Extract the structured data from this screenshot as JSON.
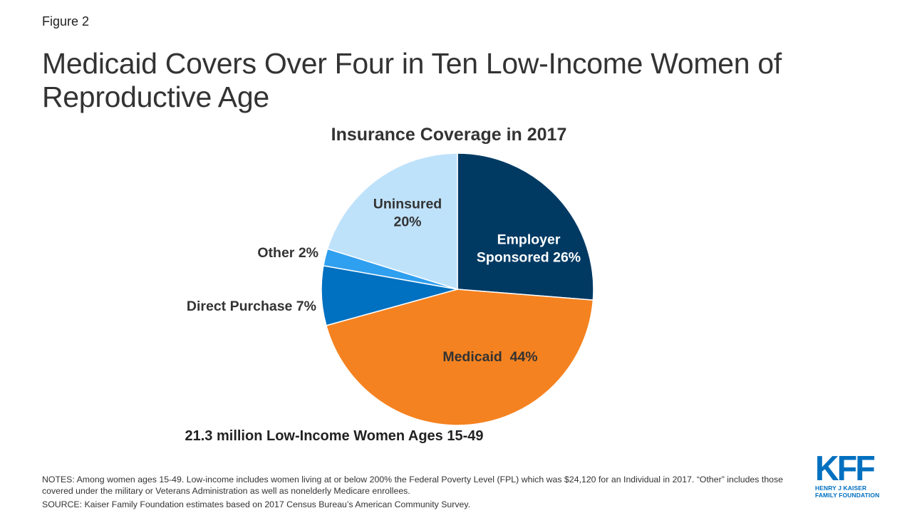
{
  "figure_label": "Figure 2",
  "title": "Medicaid Covers Over Four in Ten Low-Income Women of Reproductive Age",
  "chart_data": {
    "type": "pie",
    "title": "Insurance Coverage in 2017",
    "slices": [
      {
        "name": "Employer Sponsored",
        "value": 26,
        "label_lines": [
          "Employer",
          "Sponsored 26%"
        ],
        "color": "#003a63",
        "label_color": "#ffffff"
      },
      {
        "name": "Medicaid",
        "value": 44,
        "label_lines": [
          "Medicaid  44%"
        ],
        "color": "#f58220",
        "label_color": "#333333"
      },
      {
        "name": "Direct Purchase",
        "value": 7,
        "label_lines": [
          "Direct Purchase 7%"
        ],
        "color": "#0070c0",
        "label_color": "#333333"
      },
      {
        "name": "Other",
        "value": 2,
        "label_lines": [
          "Other 2%"
        ],
        "color": "#2f9ff0",
        "label_color": "#333333"
      },
      {
        "name": "Uninsured",
        "value": 20,
        "label_lines": [
          "Uninsured",
          "20%"
        ],
        "color": "#bfe2fb",
        "label_color": "#333333"
      }
    ],
    "footnote": "21.3 million  Low-Income  Women Ages 15-49"
  },
  "notes": "NOTES: Among women ages 15-49. Low-income includes women living at or below 200% the Federal Poverty Level (FPL) which was $24,120 for an Individual  in 2017. “Other” includes those covered  under the military or Veterans Administration as well as nonelderly Medicare enrollees.",
  "source": "SOURCE: Kaiser Family Foundation estimates based on 2017 Census Bureau’s American Community Survey.",
  "logo": {
    "mark": "KFF",
    "line1": "HENRY J KAISER",
    "line2": "FAMILY FOUNDATION"
  }
}
